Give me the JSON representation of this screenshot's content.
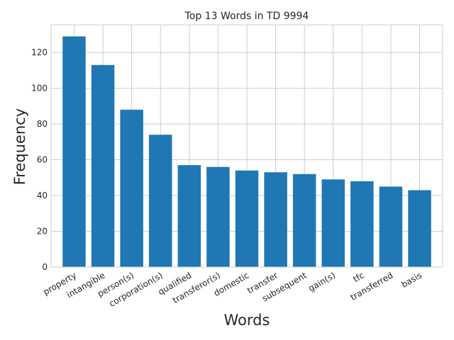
{
  "chart_data": {
    "type": "bar",
    "title": "Top 13 Words in TD 9994",
    "xlabel": "Words",
    "ylabel": "Frequency",
    "categories": [
      "property",
      "intangible",
      "person(s)",
      "corporation(s)",
      "qualified",
      "transferor(s)",
      "domestic",
      "transfer",
      "subsequent",
      "gain(s)",
      "tfc",
      "transferred",
      "basis"
    ],
    "values": [
      129,
      113,
      88,
      74,
      57,
      56,
      54,
      53,
      52,
      49,
      48,
      45,
      43
    ],
    "yticks": [
      0,
      20,
      40,
      60,
      80,
      100,
      120
    ],
    "ylim": [
      0,
      135.5
    ],
    "grid": true,
    "bar_color": "#1f77b4",
    "grid_color": "#cccccc"
  }
}
